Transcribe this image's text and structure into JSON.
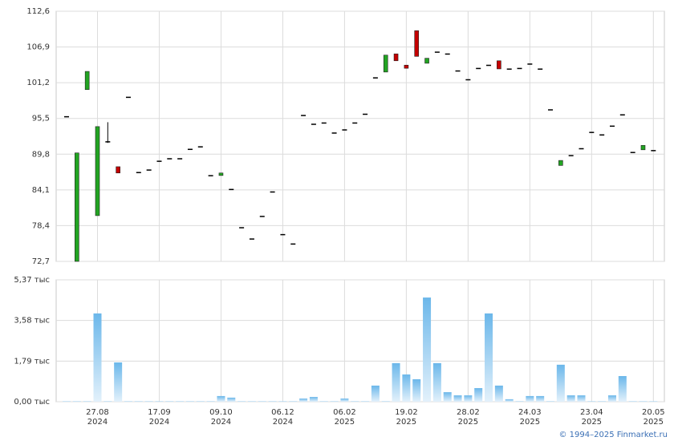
{
  "chart_data": [
    {
      "type": "candlestick",
      "up_color": "#22a422",
      "down_color": "#c40000",
      "doji_color": "#000000",
      "open": [
        95.8,
        72.7,
        100.1,
        80.0,
        91.8,
        87.8,
        98.9,
        86.9,
        87.3,
        88.7,
        89.1,
        89.1,
        90.6,
        91.0,
        86.4,
        86.4,
        84.2,
        78.1,
        76.3,
        79.9,
        83.8,
        77.0,
        75.5,
        96.0,
        94.6,
        94.8,
        93.2,
        93.7,
        94.8,
        96.2,
        102.0,
        102.9,
        105.8,
        104.0,
        109.5,
        104.3,
        106.1,
        105.8,
        103.1,
        101.7,
        103.5,
        104.0,
        104.7,
        103.4,
        103.5,
        104.2,
        103.4,
        96.9,
        88.0,
        89.6,
        90.7,
        93.3,
        92.9,
        94.3,
        96.1,
        90.1,
        90.5,
        90.4
      ],
      "high": [
        95.8,
        90.0,
        103.0,
        94.2,
        94.9,
        87.8,
        98.9,
        86.9,
        87.3,
        88.7,
        89.1,
        89.1,
        90.6,
        91.0,
        86.4,
        86.8,
        84.2,
        78.1,
        76.3,
        79.9,
        83.8,
        77.0,
        75.5,
        96.0,
        94.6,
        94.8,
        93.2,
        93.7,
        94.8,
        96.2,
        102.0,
        105.6,
        105.8,
        104.0,
        109.5,
        105.1,
        106.1,
        105.8,
        103.1,
        101.7,
        103.5,
        104.0,
        104.7,
        103.4,
        103.5,
        104.2,
        103.4,
        96.9,
        88.8,
        89.6,
        90.7,
        93.3,
        92.9,
        94.3,
        96.1,
        90.1,
        91.2,
        90.4
      ],
      "low": [
        95.8,
        72.7,
        100.1,
        80.0,
        91.6,
        86.8,
        98.9,
        86.9,
        87.3,
        88.7,
        89.1,
        89.1,
        90.6,
        91.0,
        86.4,
        86.4,
        84.2,
        78.1,
        76.3,
        79.9,
        83.8,
        77.0,
        75.5,
        96.0,
        94.6,
        94.8,
        93.2,
        93.7,
        94.8,
        96.2,
        102.0,
        102.9,
        104.7,
        103.5,
        105.4,
        104.3,
        106.1,
        105.8,
        103.1,
        101.7,
        103.5,
        104.0,
        103.4,
        103.4,
        103.5,
        104.2,
        103.4,
        96.9,
        88.0,
        89.6,
        90.7,
        93.3,
        92.9,
        94.3,
        96.1,
        90.1,
        90.5,
        90.4
      ],
      "close": [
        95.8,
        90.0,
        103.0,
        94.2,
        91.8,
        86.8,
        98.9,
        86.9,
        87.3,
        88.7,
        89.1,
        89.1,
        90.6,
        91.0,
        86.4,
        86.8,
        84.2,
        78.1,
        76.3,
        79.9,
        83.8,
        77.0,
        75.5,
        96.0,
        94.6,
        94.8,
        93.2,
        93.7,
        94.8,
        96.2,
        102.0,
        105.6,
        104.7,
        103.5,
        105.4,
        105.1,
        106.1,
        105.8,
        103.1,
        101.7,
        103.5,
        104.0,
        103.4,
        103.4,
        103.5,
        104.2,
        103.4,
        96.9,
        88.8,
        89.6,
        90.7,
        93.3,
        92.9,
        94.3,
        96.1,
        90.1,
        91.2,
        90.4
      ],
      "ylim": [
        72.7,
        112.6
      ],
      "yticks": [
        {
          "value": 72.7,
          "label": "72,7"
        },
        {
          "value": 78.4,
          "label": "78,4"
        },
        {
          "value": 84.1,
          "label": "84,1"
        },
        {
          "value": 89.8,
          "label": "89,8"
        },
        {
          "value": 95.5,
          "label": "95,5"
        },
        {
          "value": 101.2,
          "label": "101,2"
        },
        {
          "value": 106.9,
          "label": "106,9"
        },
        {
          "value": 112.6,
          "label": "112,6"
        }
      ],
      "grid": true
    },
    {
      "type": "bar",
      "color": "#6bb7ea",
      "categories": [
        null,
        null,
        null,
        "27.08\n2024",
        null,
        null,
        null,
        null,
        null,
        "17.09\n2024",
        null,
        null,
        null,
        null,
        null,
        "09.10\n2024",
        null,
        null,
        null,
        null,
        null,
        "06.12\n2024",
        null,
        null,
        null,
        null,
        null,
        "06.02\n2025",
        null,
        null,
        null,
        null,
        null,
        "19.02\n2025",
        null,
        null,
        null,
        null,
        null,
        "28.02\n2025",
        null,
        null,
        null,
        null,
        null,
        "24.03\n2025",
        null,
        null,
        null,
        null,
        null,
        "23.04\n2025",
        null,
        null,
        null,
        null,
        null,
        "20.05\n2025"
      ],
      "values": [
        0.02,
        0.02,
        0.02,
        3.89,
        0.02,
        1.73,
        0.02,
        0.02,
        0.02,
        0.02,
        0.02,
        0.02,
        0.02,
        0.02,
        0.02,
        0.25,
        0.18,
        0.02,
        0.02,
        0.02,
        0.02,
        0.02,
        0.02,
        0.14,
        0.21,
        0.02,
        0.02,
        0.14,
        0.02,
        0.02,
        0.71,
        0.02,
        1.7,
        1.2,
        0.99,
        4.59,
        1.7,
        0.42,
        0.28,
        0.28,
        0.6,
        3.89,
        0.71,
        0.11,
        0.02,
        0.25,
        0.25,
        0.02,
        1.63,
        0.28,
        0.28,
        0.02,
        0.02,
        0.28,
        1.13,
        0.02,
        0.02,
        0.02
      ],
      "ylim": [
        0,
        5.37
      ],
      "yticks": [
        {
          "value": 0,
          "label": "0,00 тыс"
        },
        {
          "value": 1.79,
          "label": "1,79 тыс"
        },
        {
          "value": 3.58,
          "label": "3,58 тыс"
        },
        {
          "value": 5.37,
          "label": "5,37 тыс"
        }
      ],
      "grid": true
    }
  ],
  "footer": "© 1994–2025 Finmarket.ru"
}
